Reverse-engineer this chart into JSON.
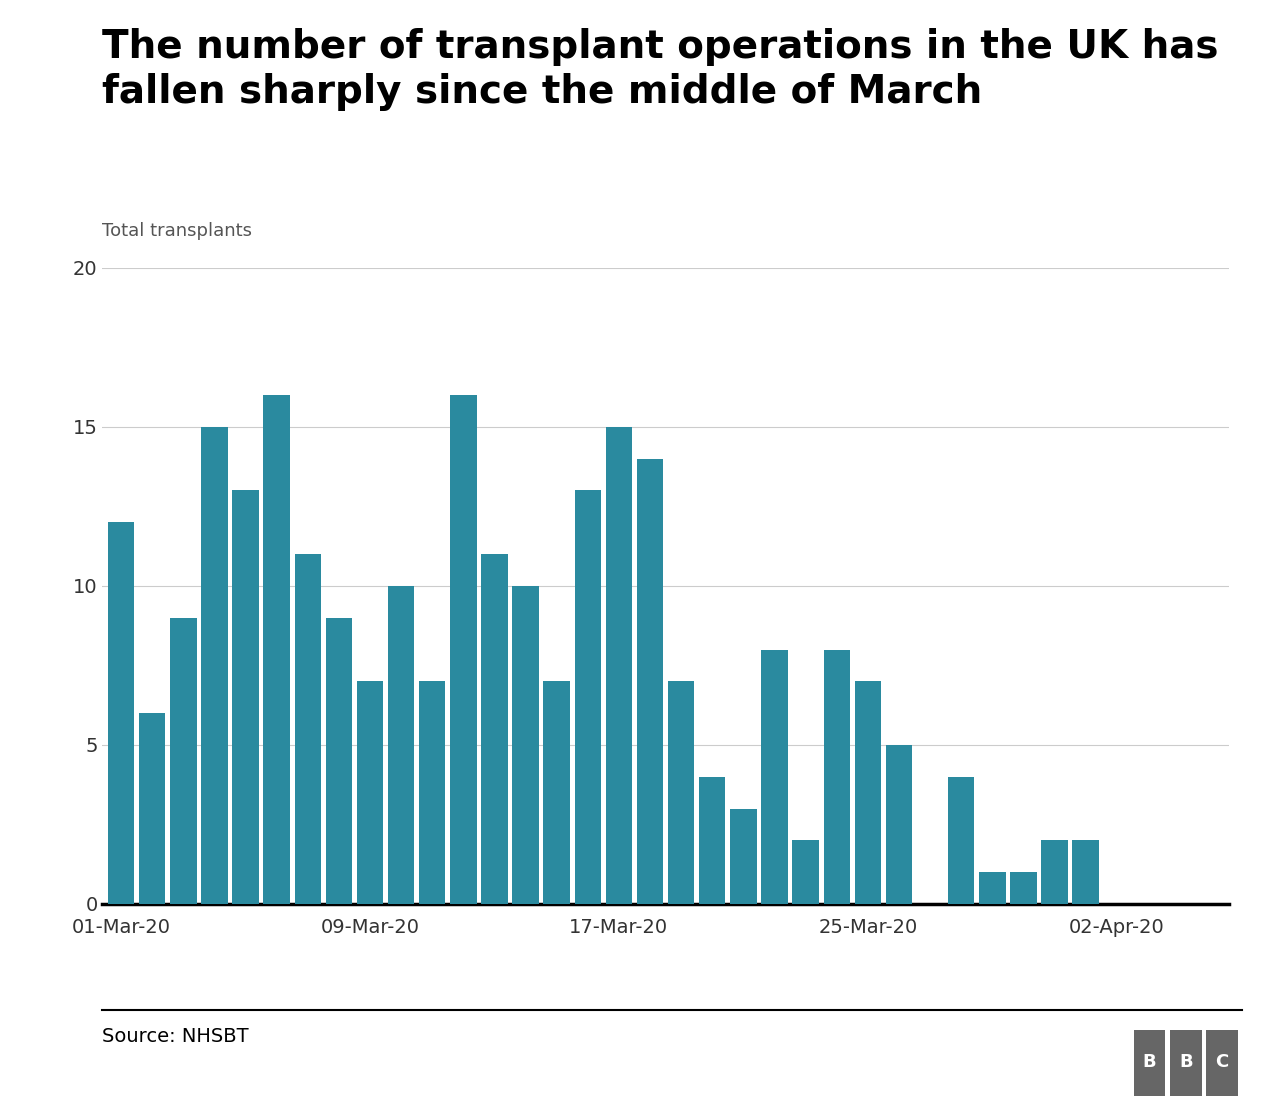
{
  "title_line1": "The number of transplant operations in the UK has",
  "title_line2": "fallen sharply since the middle of March",
  "ylabel": "Total transplants",
  "source": "Source: NHSBT",
  "bar_color": "#2a8a9f",
  "background_color": "#ffffff",
  "ylim": [
    0,
    20
  ],
  "yticks": [
    0,
    5,
    10,
    15,
    20
  ],
  "dates": [
    "01-Mar-20",
    "02-Mar-20",
    "03-Mar-20",
    "04-Mar-20",
    "05-Mar-20",
    "06-Mar-20",
    "07-Mar-20",
    "08-Mar-20",
    "09-Mar-20",
    "10-Mar-20",
    "11-Mar-20",
    "12-Mar-20",
    "13-Mar-20",
    "14-Mar-20",
    "15-Mar-20",
    "16-Mar-20",
    "17-Mar-20",
    "18-Mar-20",
    "19-Mar-20",
    "20-Mar-20",
    "21-Mar-20",
    "22-Mar-20",
    "23-Mar-20",
    "24-Mar-20",
    "25-Mar-20",
    "26-Mar-20",
    "27-Mar-20",
    "28-Mar-20",
    "29-Mar-20",
    "30-Mar-20",
    "31-Mar-20",
    "01-Apr-20",
    "02-Apr-20",
    "03-Apr-20",
    "04-Apr-20",
    "05-Apr-20"
  ],
  "values": [
    12,
    6,
    9,
    15,
    13,
    16,
    11,
    9,
    7,
    10,
    7,
    16,
    11,
    10,
    7,
    13,
    15,
    14,
    7,
    4,
    3,
    8,
    2,
    8,
    7,
    5,
    0,
    4,
    1,
    1,
    2,
    2,
    0,
    0,
    0,
    0
  ],
  "xtick_labels": [
    "01-Mar-20",
    "09-Mar-20",
    "17-Mar-20",
    "25-Mar-20",
    "02-Apr-20"
  ],
  "xtick_positions": [
    0,
    8,
    16,
    24,
    32
  ],
  "title_fontsize": 28,
  "axis_label_fontsize": 13,
  "tick_fontsize": 14,
  "source_fontsize": 14
}
